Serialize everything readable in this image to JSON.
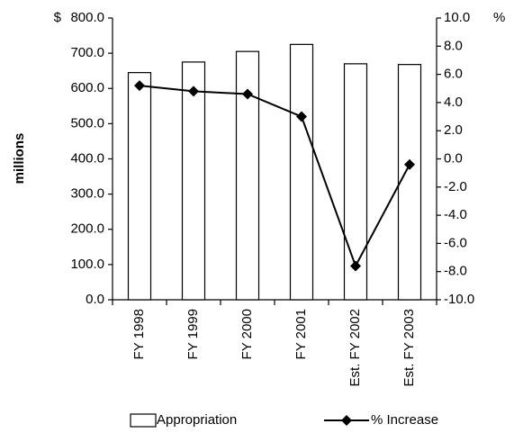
{
  "chart_data": {
    "type": "combo",
    "y_label": "millions",
    "y_unit": "$",
    "y2_unit": "%",
    "categories": [
      "FY 1998",
      "FY 1999",
      "FY 2000",
      "FY 2001",
      "Est. FY 2002",
      "Est. FY 2003"
    ],
    "series": [
      {
        "name": "Appropriation",
        "type": "bar",
        "color": "#ffffff",
        "values": [
          645,
          675,
          705,
          725,
          670,
          668
        ]
      },
      {
        "name": "% Increase",
        "type": "line",
        "axis": "y2",
        "color": "#000000",
        "values": [
          5.2,
          4.8,
          4.6,
          3.0,
          -7.6,
          -0.4
        ]
      }
    ],
    "ylim": [
      0,
      800
    ],
    "yticks": [
      {
        "value": 0,
        "label": "0.0"
      },
      {
        "value": 100,
        "label": "100.0"
      },
      {
        "value": 200,
        "label": "200.0"
      },
      {
        "value": 300,
        "label": "300.0"
      },
      {
        "value": 400,
        "label": "400.0"
      },
      {
        "value": 500,
        "label": "500.0"
      },
      {
        "value": 600,
        "label": "600.0"
      },
      {
        "value": 700,
        "label": "700.0"
      },
      {
        "value": 800,
        "label": "800.0"
      }
    ],
    "y2lim": [
      -10,
      10
    ],
    "y2ticks": [
      {
        "value": -10,
        "label": "-10.0"
      },
      {
        "value": -8,
        "label": "-8.0"
      },
      {
        "value": -6,
        "label": "-6.0"
      },
      {
        "value": -4,
        "label": "-4.0"
      },
      {
        "value": -2,
        "label": "-2.0"
      },
      {
        "value": 0,
        "label": "0.0"
      },
      {
        "value": 2,
        "label": "2.0"
      },
      {
        "value": 4,
        "label": "4.0"
      },
      {
        "value": 6,
        "label": "6.0"
      },
      {
        "value": 8,
        "label": "8.0"
      },
      {
        "value": 10,
        "label": "10.0"
      }
    ],
    "grid": false
  }
}
